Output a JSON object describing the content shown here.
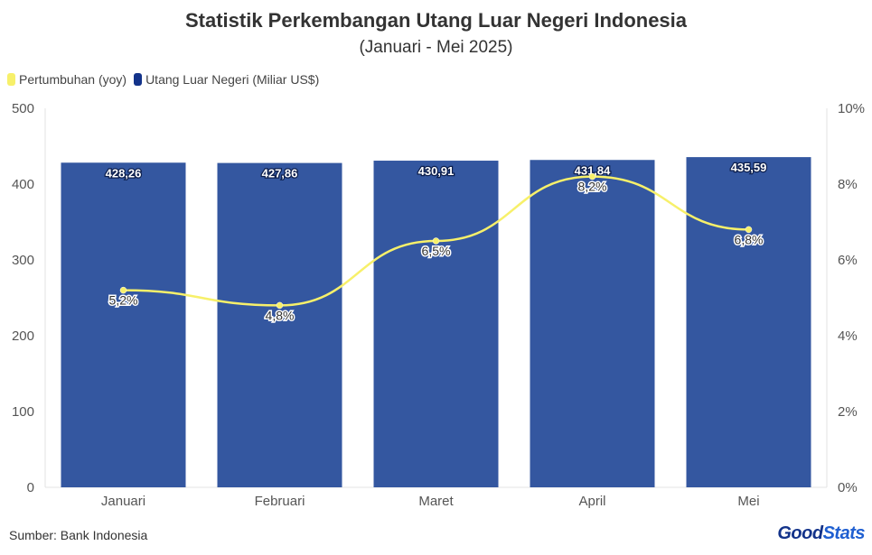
{
  "chart_data": {
    "type": "bar",
    "title": "Statistik Perkembangan Utang Luar Negeri Indonesia",
    "subtitle": "(Januari - Mei 2025)",
    "categories": [
      "Januari",
      "Februari",
      "Maret",
      "April",
      "Mei"
    ],
    "series": [
      {
        "name": "Utang Luar Negeri (Miliar US$)",
        "type": "bar",
        "axis": "left",
        "color": "#3457a0",
        "values": [
          428.26,
          427.86,
          430.91,
          431.84,
          435.59
        ],
        "labels": [
          "428,26",
          "427,86",
          "430,91",
          "431,84",
          "435,59"
        ]
      },
      {
        "name": "Pertumbuhan (yoy)",
        "type": "line",
        "axis": "right",
        "color": "#f7f06a",
        "values": [
          5.2,
          4.8,
          6.5,
          8.2,
          6.8
        ],
        "labels": [
          "5,2%",
          "4,8%",
          "6,5%",
          "8,2%",
          "6,8%"
        ]
      }
    ],
    "ylim": [
      0,
      500
    ],
    "yticks": [
      "0",
      "100",
      "200",
      "300",
      "400",
      "500"
    ],
    "y2lim": [
      0,
      10
    ],
    "y2ticks": [
      "0%",
      "2%",
      "4%",
      "6%",
      "8%",
      "10%"
    ],
    "legend_position": "top-left",
    "grid": false
  },
  "legend": [
    {
      "label": "Pertumbuhan (yoy)",
      "color": "#f7f06a"
    },
    {
      "label": "Utang Luar Negeri (Miliar US$)",
      "color": "#13338a"
    }
  ],
  "footer": {
    "source": "Sumber: Bank Indonesia",
    "brand_part1": "Good",
    "brand_part2": "Stats",
    "brand_color1": "#13338a",
    "brand_color2": "#1f5fd1"
  }
}
